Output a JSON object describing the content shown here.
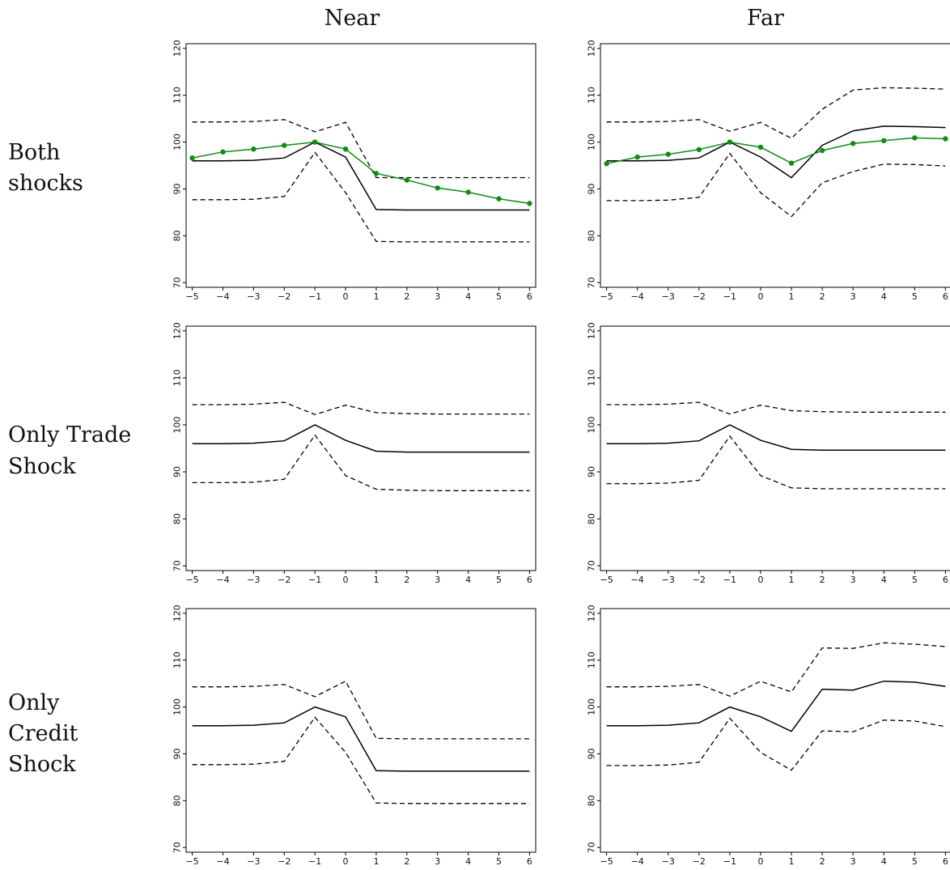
{
  "column_titles": [
    "Near",
    "Far"
  ],
  "row_labels": [
    [
      "Both",
      "shocks"
    ],
    [
      "Only Trade",
      "Shock"
    ],
    [
      "Only",
      "Credit",
      "Shock"
    ]
  ],
  "colors": {
    "estimate": "#000000",
    "bounds": "#000000",
    "observed": "#138a13"
  },
  "chart_data": [
    {
      "type": "line",
      "panel": "Both shocks / Near",
      "x": [
        -5,
        -4,
        -3,
        -2,
        -1,
        0,
        1,
        2,
        3,
        4,
        5,
        6
      ],
      "ylim": [
        69,
        121
      ],
      "yticks": [
        70,
        80,
        90,
        100,
        110,
        120
      ],
      "series": [
        {
          "style": "solid",
          "values": [
            96.0,
            96.0,
            96.1,
            96.6,
            100,
            96.8,
            85.6,
            85.5,
            85.5,
            85.5,
            85.5,
            85.5
          ]
        },
        {
          "style": "dashed",
          "values": [
            104.3,
            104.3,
            104.4,
            104.8,
            102.2,
            104.2,
            92.4,
            92.4,
            92.4,
            92.4,
            92.4,
            92.4
          ]
        },
        {
          "style": "dashed",
          "values": [
            87.7,
            87.7,
            87.8,
            88.4,
            97.8,
            89.2,
            78.8,
            78.7,
            78.7,
            78.7,
            78.7,
            78.7
          ]
        },
        {
          "style": "observed",
          "values": [
            96.6,
            97.9,
            98.5,
            99.3,
            100,
            98.5,
            93.3,
            91.9,
            90.2,
            89.3,
            87.9,
            86.9
          ]
        }
      ]
    },
    {
      "type": "line",
      "panel": "Both shocks / Far",
      "x": [
        -5,
        -4,
        -3,
        -2,
        -1,
        0,
        1,
        2,
        3,
        4,
        5,
        6
      ],
      "ylim": [
        69,
        121
      ],
      "yticks": [
        70,
        80,
        90,
        100,
        110,
        120
      ],
      "series": [
        {
          "style": "solid",
          "values": [
            96.0,
            96.0,
            96.1,
            96.6,
            100,
            96.8,
            92.4,
            99.3,
            102.4,
            103.4,
            103.3,
            103.1
          ]
        },
        {
          "style": "dashed",
          "values": [
            104.3,
            104.3,
            104.4,
            104.8,
            102.3,
            104.2,
            100.8,
            107.0,
            111.1,
            111.6,
            111.5,
            111.3
          ]
        },
        {
          "style": "dashed",
          "values": [
            87.5,
            87.5,
            87.6,
            88.2,
            97.6,
            89.2,
            84.1,
            91.3,
            93.7,
            95.3,
            95.2,
            94.9
          ]
        },
        {
          "style": "observed",
          "values": [
            95.4,
            96.8,
            97.4,
            98.4,
            100,
            98.9,
            95.5,
            98.2,
            99.7,
            100.3,
            100.9,
            100.7
          ]
        }
      ]
    },
    {
      "type": "line",
      "panel": "Only Trade Shock / Near",
      "x": [
        -5,
        -4,
        -3,
        -2,
        -1,
        0,
        1,
        2,
        3,
        4,
        5,
        6
      ],
      "ylim": [
        69,
        121
      ],
      "yticks": [
        70,
        80,
        90,
        100,
        110,
        120
      ],
      "series": [
        {
          "style": "solid",
          "values": [
            96.0,
            96.0,
            96.1,
            96.6,
            100,
            96.7,
            94.4,
            94.2,
            94.2,
            94.2,
            94.2,
            94.2
          ]
        },
        {
          "style": "dashed",
          "values": [
            104.3,
            104.3,
            104.4,
            104.8,
            102.2,
            104.2,
            102.6,
            102.4,
            102.3,
            102.3,
            102.3,
            102.3
          ]
        },
        {
          "style": "dashed",
          "values": [
            87.7,
            87.7,
            87.8,
            88.4,
            97.8,
            89.2,
            86.3,
            86.1,
            86.0,
            86.0,
            86.0,
            86.0
          ]
        }
      ]
    },
    {
      "type": "line",
      "panel": "Only Trade Shock / Far",
      "x": [
        -5,
        -4,
        -3,
        -2,
        -1,
        0,
        1,
        2,
        3,
        4,
        5,
        6
      ],
      "ylim": [
        69,
        121
      ],
      "yticks": [
        70,
        80,
        90,
        100,
        110,
        120
      ],
      "series": [
        {
          "style": "solid",
          "values": [
            96.0,
            96.0,
            96.1,
            96.6,
            100,
            96.7,
            94.8,
            94.6,
            94.6,
            94.6,
            94.6,
            94.6
          ]
        },
        {
          "style": "dashed",
          "values": [
            104.3,
            104.3,
            104.4,
            104.8,
            102.3,
            104.2,
            103.0,
            102.8,
            102.7,
            102.7,
            102.7,
            102.7
          ]
        },
        {
          "style": "dashed",
          "values": [
            87.5,
            87.5,
            87.6,
            88.2,
            97.6,
            89.2,
            86.6,
            86.4,
            86.4,
            86.4,
            86.4,
            86.4
          ]
        }
      ]
    },
    {
      "type": "line",
      "panel": "Only Credit Shock / Near",
      "x": [
        -5,
        -4,
        -3,
        -2,
        -1,
        0,
        1,
        2,
        3,
        4,
        5,
        6
      ],
      "ylim": [
        69,
        121
      ],
      "yticks": [
        70,
        80,
        90,
        100,
        110,
        120
      ],
      "series": [
        {
          "style": "solid",
          "values": [
            96.0,
            96.0,
            96.1,
            96.6,
            100,
            97.9,
            86.4,
            86.3,
            86.3,
            86.3,
            86.3,
            86.3
          ]
        },
        {
          "style": "dashed",
          "values": [
            104.3,
            104.3,
            104.4,
            104.8,
            102.2,
            105.5,
            93.3,
            93.2,
            93.2,
            93.2,
            93.2,
            93.2
          ]
        },
        {
          "style": "dashed",
          "values": [
            87.7,
            87.7,
            87.8,
            88.4,
            97.8,
            90.3,
            79.5,
            79.4,
            79.4,
            79.4,
            79.4,
            79.4
          ]
        }
      ]
    },
    {
      "type": "line",
      "panel": "Only Credit Shock / Far",
      "x": [
        -5,
        -4,
        -3,
        -2,
        -1,
        0,
        1,
        2,
        3,
        4,
        5,
        6
      ],
      "ylim": [
        69,
        121
      ],
      "yticks": [
        70,
        80,
        90,
        100,
        110,
        120
      ],
      "series": [
        {
          "style": "solid",
          "values": [
            96.0,
            96.0,
            96.1,
            96.6,
            100,
            97.9,
            94.8,
            103.8,
            103.6,
            105.5,
            105.3,
            104.4
          ]
        },
        {
          "style": "dashed",
          "values": [
            104.3,
            104.3,
            104.4,
            104.8,
            102.3,
            105.5,
            103.2,
            112.6,
            112.5,
            113.7,
            113.4,
            112.9
          ]
        },
        {
          "style": "dashed",
          "values": [
            87.5,
            87.5,
            87.6,
            88.2,
            97.6,
            90.3,
            86.5,
            94.9,
            94.7,
            97.2,
            97.0,
            95.8
          ]
        }
      ]
    }
  ]
}
